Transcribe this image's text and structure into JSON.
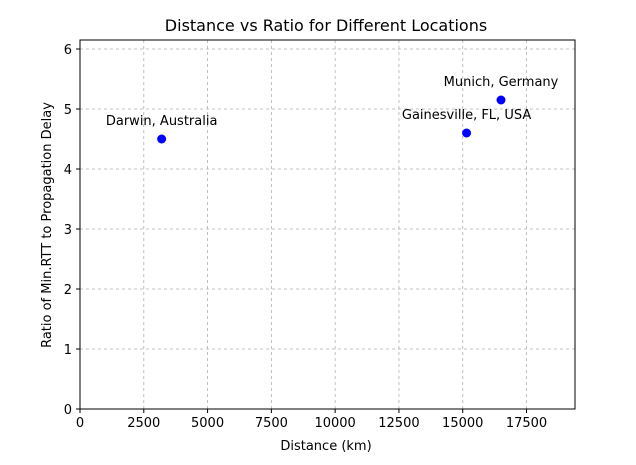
{
  "chart_data": {
    "type": "scatter",
    "title": "Distance vs Ratio for Different Locations",
    "xlabel": "Distance (km)",
    "ylabel": "Ratio of Min.RTT to Propagation Delay",
    "xlim": [
      0,
      19400
    ],
    "ylim": [
      0,
      6.15
    ],
    "x_ticks": [
      0,
      2500,
      5000,
      7500,
      10000,
      12500,
      15000,
      17500
    ],
    "y_ticks": [
      0,
      1,
      2,
      3,
      4,
      5,
      6
    ],
    "grid": true,
    "marker_color": "#0000ff",
    "points": [
      {
        "label": "Darwin, Australia",
        "x": 3200,
        "y": 4.5
      },
      {
        "label": "Gainesville, FL, USA",
        "x": 15150,
        "y": 4.6
      },
      {
        "label": "Munich, Germany",
        "x": 16500,
        "y": 5.15
      }
    ]
  }
}
